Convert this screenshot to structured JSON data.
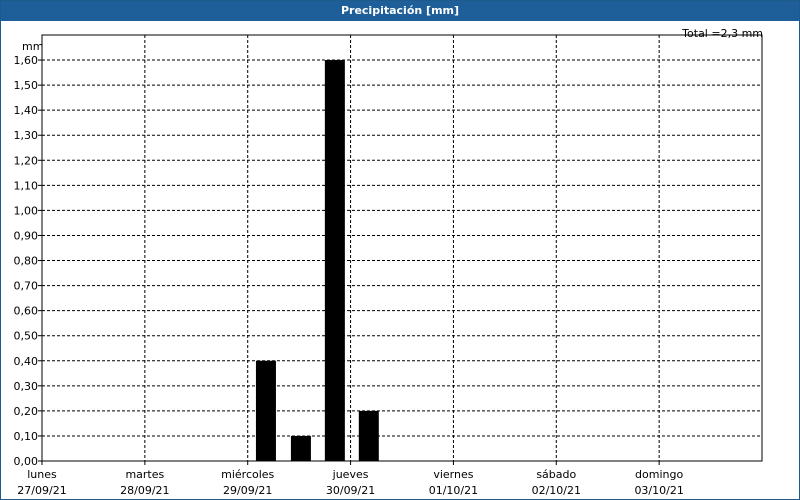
{
  "title": "Precipitación [mm]",
  "total_label": "Total =2,3 mm",
  "chart_data": {
    "type": "bar",
    "title": "Precipitación [mm]",
    "ylabel": "mm",
    "ylim": [
      0,
      1.7
    ],
    "yticks": [
      "0,00",
      "0,10",
      "0,20",
      "0,30",
      "0,40",
      "0,50",
      "0,60",
      "0,70",
      "0,80",
      "0,90",
      "1,00",
      "1,10",
      "1,20",
      "1,30",
      "1,40",
      "1,50",
      "1,60"
    ],
    "days": [
      {
        "name": "lunes",
        "date": "27/09/21"
      },
      {
        "name": "martes",
        "date": "28/09/21"
      },
      {
        "name": "miércoles",
        "date": "29/09/21"
      },
      {
        "name": "jueves",
        "date": "30/09/21"
      },
      {
        "name": "viernes",
        "date": "01/10/21"
      },
      {
        "name": "sábado",
        "date": "02/10/21"
      },
      {
        "name": "domingo",
        "date": "03/10/21"
      }
    ],
    "bars": [
      {
        "day_offset": 2.08,
        "value": 0.4
      },
      {
        "day_offset": 2.42,
        "value": 0.1
      },
      {
        "day_offset": 2.75,
        "value": 1.6
      },
      {
        "day_offset": 3.08,
        "value": 0.2
      }
    ],
    "colors": {
      "bar": "#000000",
      "grid": "#000000",
      "title_bg": "#1f5f99"
    }
  }
}
